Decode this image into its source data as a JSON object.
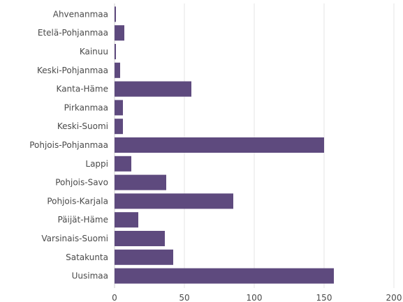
{
  "chart_data": {
    "type": "bar",
    "orientation": "horizontal",
    "categories": [
      "Ahvenanmaa",
      "Etelä-Pohjanmaa",
      "Kainuu",
      "Keski-Pohjanmaa",
      "Kanta-Häme",
      "Pirkanmaa",
      "Keski-Suomi",
      "Pohjois-Pohjanmaa",
      "Lappi",
      "Pohjois-Savo",
      "Pohjois-Karjala",
      "Päijät-Häme",
      "Varsinais-Suomi",
      "Satakunta",
      "Uusimaa"
    ],
    "values": [
      1,
      7,
      1,
      4,
      55,
      6,
      6,
      150,
      12,
      37,
      85,
      17,
      36,
      42,
      157
    ],
    "xlim": [
      0,
      200
    ],
    "xticks": [
      0,
      50,
      100,
      150,
      200
    ],
    "xtick_labels": [
      "0",
      "50",
      "100",
      "150",
      "200"
    ],
    "bar_color": "#5e4a7e",
    "grid": "vertical",
    "legend": "none"
  }
}
